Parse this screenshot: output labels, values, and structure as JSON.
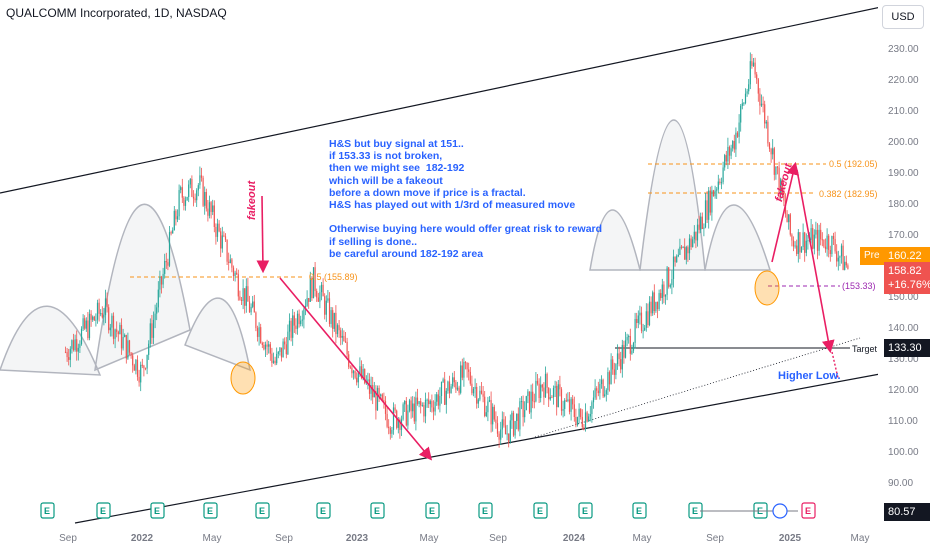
{
  "header": {
    "symbol_title": "QUALCOMM Incorporated, 1D, NASDAQ",
    "currency": "USD"
  },
  "annotations": {
    "note": "H&S but buy signal at 151..\nif 153.33 is not broken,\nthen we might see  182-192\nwhich will be a fakeout\nbefore a down move if price is a fractal.\nH&S has played out with 1/3rd of measured move\n\nOtherwise buying here would offer great risk to reward\nif selling is done..\nbe careful around 182-192 area",
    "fakeout_1": "fakeout",
    "fakeout_2": "fakeout",
    "higher_low": "Higher Low.",
    "fib_left": "0.5 (155.89)",
    "fib_05": "0.5 (192.05)",
    "fib_0382": "0.382 (182.95)",
    "support": "(153.33)",
    "target_label": "Target"
  },
  "badges": {
    "pre_label": "Pre",
    "pre_price": "160.22",
    "last_price": "158.82",
    "last_change": "+16.76%",
    "target_price": "133.30",
    "bottom_value": "80.57"
  },
  "colors": {
    "up": "#26a69a",
    "down": "#ef5350",
    "arrow": "#e91e63",
    "fib": "#f7931a",
    "note": "#2962ff"
  },
  "events": {
    "earnings_icon": "E",
    "earnings_count": 17,
    "dividend_icon": "dividend-icon"
  },
  "chart_data": {
    "type": "candlestick",
    "ylim": [
      80,
      240
    ],
    "y_ticks": [
      230.0,
      220.0,
      210.0,
      200.0,
      190.0,
      180.0,
      170.0,
      150.0,
      140.0,
      130.0,
      120.0,
      110.0,
      100.0,
      90.0
    ],
    "x_ticks": [
      "Sep",
      "2022",
      "May",
      "Sep",
      "2023",
      "May",
      "Sep",
      "2024",
      "May",
      "Sep",
      "2025",
      "May"
    ],
    "price_anchors": [
      {
        "t": "2021-06",
        "p": 132
      },
      {
        "t": "2021-08",
        "p": 146
      },
      {
        "t": "2021-10",
        "p": 125
      },
      {
        "t": "2021-12",
        "p": 182
      },
      {
        "t": "2022-01",
        "p": 186
      },
      {
        "t": "2022-03",
        "p": 155
      },
      {
        "t": "2022-05",
        "p": 128
      },
      {
        "t": "2022-07",
        "p": 155
      },
      {
        "t": "2022-09",
        "p": 128
      },
      {
        "t": "2022-11",
        "p": 110
      },
      {
        "t": "2023-01",
        "p": 115
      },
      {
        "t": "2023-03",
        "p": 125
      },
      {
        "t": "2023-05",
        "p": 105
      },
      {
        "t": "2023-07",
        "p": 122
      },
      {
        "t": "2023-09",
        "p": 110
      },
      {
        "t": "2023-11",
        "p": 130
      },
      {
        "t": "2024-01",
        "p": 150
      },
      {
        "t": "2024-03",
        "p": 170
      },
      {
        "t": "2024-05",
        "p": 200
      },
      {
        "t": "2024-06",
        "p": 225
      },
      {
        "t": "2024-08",
        "p": 168
      },
      {
        "t": "2024-10",
        "p": 168
      },
      {
        "t": "2024-11",
        "p": 158.82
      }
    ],
    "levels": {
      "support": 153.33,
      "fib_0382": 182.95,
      "fib_05": 192.05,
      "fib_left_05": 155.89,
      "target": 133.3,
      "pre_market": 160.22,
      "last": 158.82
    }
  }
}
